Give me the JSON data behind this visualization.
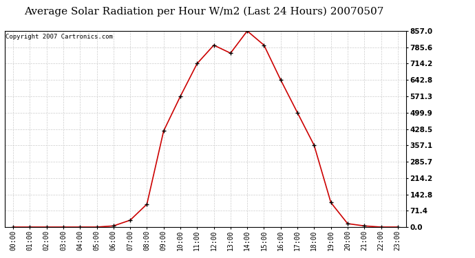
{
  "title": "Average Solar Radiation per Hour W/m2 (Last 24 Hours) 20070507",
  "copyright": "Copyright 2007 Cartronics.com",
  "hours": [
    "00:00",
    "01:00",
    "02:00",
    "03:00",
    "04:00",
    "05:00",
    "06:00",
    "07:00",
    "08:00",
    "09:00",
    "10:00",
    "11:00",
    "12:00",
    "13:00",
    "14:00",
    "15:00",
    "16:00",
    "17:00",
    "18:00",
    "19:00",
    "20:00",
    "21:00",
    "22:00",
    "23:00"
  ],
  "values": [
    0.0,
    0.0,
    0.0,
    0.0,
    0.0,
    0.0,
    5.0,
    30.0,
    100.0,
    420.0,
    571.3,
    714.2,
    795.0,
    760.0,
    857.0,
    795.0,
    642.8,
    499.9,
    357.1,
    107.0,
    15.0,
    5.0,
    0.0,
    0.0
  ],
  "yticks": [
    0.0,
    71.4,
    142.8,
    214.2,
    285.7,
    357.1,
    428.5,
    499.9,
    571.3,
    642.8,
    714.2,
    785.6,
    857.0
  ],
  "ymax": 857.0,
  "line_color": "#cc0000",
  "bg_color": "#ffffff",
  "grid_color": "#cccccc",
  "title_fontsize": 11,
  "copyright_fontsize": 6.5,
  "tick_fontsize": 7,
  "ytick_fontsize": 7.5
}
